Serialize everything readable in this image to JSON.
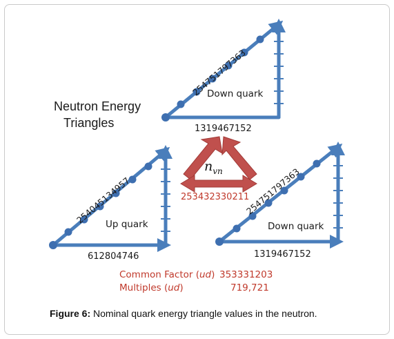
{
  "figure": {
    "title_line1": "Neutron Energy",
    "title_line2": "Triangles",
    "down_top": {
      "hyp": "254751797363",
      "label": "Down quark",
      "base": "1319467152"
    },
    "up": {
      "hyp": "254045134957",
      "label": "Up quark",
      "base": "612804746"
    },
    "down_right": {
      "hyp": "254751797363",
      "label": "Down quark",
      "base": "1319467152"
    },
    "center": {
      "symbol": "n",
      "subscript": "vn",
      "value": "253432330211"
    },
    "common_factor": {
      "label_pre": "Common Factor (",
      "label_var": "ud",
      "label_post": ")",
      "value": "353331203"
    },
    "multiples": {
      "label_pre": "Multiples (",
      "label_var": "ud",
      "label_post": ")",
      "value": "719,721"
    }
  },
  "caption": {
    "prefix": "Figure 6:",
    "text": " Nominal quark energy triangle values in the neutron."
  },
  "colors": {
    "axis_blue": "#4a7ebb",
    "dot_blue": "#3e6fb0",
    "arrow_red": "#c0504d",
    "text_red": "#c0392b"
  }
}
